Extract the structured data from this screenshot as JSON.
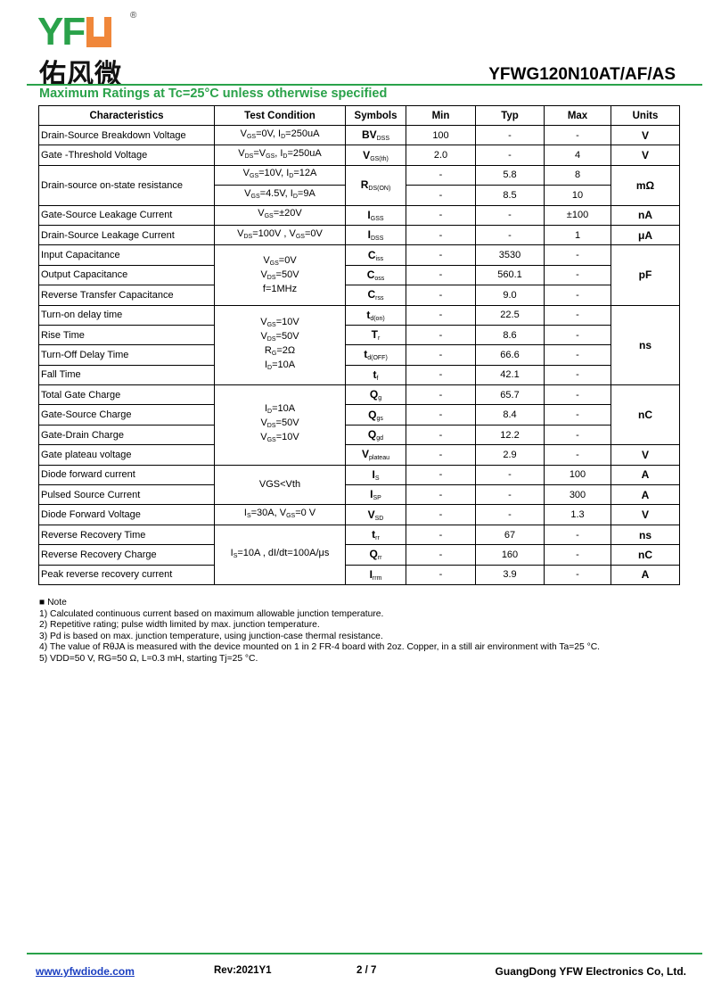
{
  "header": {
    "logo_text": "YFW",
    "logo_cn": "佑风微",
    "logo_reg": "®",
    "part_number": "YFWG120N10AT/AF/AS",
    "accent_color": "#2aa24a",
    "logo_orange": "#f0873a"
  },
  "section_title": "Maximum Ratings at Tc=25°C unless otherwise specified",
  "table": {
    "headers": [
      "Characteristics",
      "Test Condition",
      "Symbols",
      "Min",
      "Typ",
      "Max",
      "Units"
    ],
    "rows": [
      {
        "char": "Drain-Source Breakdown Voltage",
        "cond": [
          [
            "V",
            "GS",
            "=0V, I",
            "D",
            "=250uA"
          ]
        ],
        "sym": [
          "BV",
          "DSS"
        ],
        "min": "100",
        "typ": "-",
        "max": "-",
        "unit": "V"
      },
      {
        "char": "Gate -Threshold  Voltage",
        "cond": [
          [
            "V",
            "DS",
            "=V",
            "GS",
            ", I",
            "D",
            "=250uA"
          ]
        ],
        "sym": [
          "V",
          "GS(th)"
        ],
        "min": "2.0",
        "typ": "-",
        "max": "4",
        "unit": "V"
      },
      {
        "char": "Drain-source on-state resistance",
        "char_span": 2,
        "cond": [
          [
            "V",
            "GS",
            "=10V, I",
            "D",
            "=12A"
          ]
        ],
        "sym": [
          "R",
          "DS(ON)"
        ],
        "sym_span": 2,
        "min": "-",
        "typ": "5.8",
        "max": "8",
        "unit": "mΩ",
        "unit_span": 2
      },
      {
        "cond": [
          [
            "V",
            "GS",
            "=4.5V, I",
            "D",
            "=9A"
          ]
        ],
        "min": "-",
        "typ": "8.5",
        "max": "10"
      },
      {
        "char": "Gate-Source Leakage Current",
        "cond": [
          [
            "V",
            "GS",
            "=±20V"
          ]
        ],
        "sym": [
          "I",
          "GSS"
        ],
        "min": "-",
        "typ": "-",
        "max": "±100",
        "unit": "nA"
      },
      {
        "char": "Drain-Source Leakage Current",
        "cond": [
          [
            "V",
            "DS",
            "=100V , V",
            "GS",
            "=0V"
          ]
        ],
        "sym": [
          "I",
          "DSS"
        ],
        "min": "-",
        "typ": "-",
        "max": "1",
        "unit": "μA"
      },
      {
        "char": "Input Capacitance",
        "cond": [
          [
            "V",
            "GS",
            "=0V"
          ],
          [
            "V",
            "DS",
            "=50V"
          ],
          [
            "f=1MHz"
          ]
        ],
        "cond_span": 3,
        "sym": [
          "C",
          "iss"
        ],
        "min": "-",
        "typ": "3530",
        "max": "-",
        "unit": "pF",
        "unit_span": 3
      },
      {
        "char": "Output Capacitance",
        "sym": [
          "C",
          "oss"
        ],
        "min": "-",
        "typ": "560.1",
        "max": "-"
      },
      {
        "char": "Reverse Transfer Capacitance",
        "sym": [
          "C",
          "rss"
        ],
        "min": "-",
        "typ": "9.0",
        "max": "-"
      },
      {
        "char": "Turn-on delay time",
        "cond": [
          [
            "V",
            "GS",
            "=10V"
          ],
          [
            "V",
            "DS",
            "=50V"
          ],
          [
            "R",
            "G",
            "=2Ω"
          ],
          [
            "I",
            "D",
            "=10A"
          ]
        ],
        "cond_span": 4,
        "sym": [
          "t",
          "d(on)"
        ],
        "min": "-",
        "typ": "22.5",
        "max": "-",
        "unit": "ns",
        "unit_span": 4
      },
      {
        "char": "Rise Time",
        "sym": [
          "T",
          "r"
        ],
        "min": "-",
        "typ": "8.6",
        "max": "-"
      },
      {
        "char": "Turn-Off  Delay Time",
        "sym": [
          "t",
          "d(OFF)"
        ],
        "min": "-",
        "typ": "66.6",
        "max": "-"
      },
      {
        "char": "Fall Time",
        "sym": [
          "t",
          "f"
        ],
        "min": "-",
        "typ": "42.1",
        "max": "-"
      },
      {
        "char": "Total Gate Charge",
        "cond": [
          [
            "I",
            "D",
            "=10A"
          ],
          [
            "V",
            "DS",
            "=50V"
          ],
          [
            "V",
            "GS",
            "=10V"
          ]
        ],
        "cond_span": 4,
        "sym": [
          "Q",
          "g"
        ],
        "min": "-",
        "typ": "65.7",
        "max": "-",
        "unit": "nC",
        "unit_span": 3
      },
      {
        "char": "Gate-Source Charge",
        "sym": [
          "Q",
          "gs"
        ],
        "min": "-",
        "typ": "8.4",
        "max": "-"
      },
      {
        "char": "Gate-Drain Charge",
        "sym": [
          "Q",
          "gd"
        ],
        "min": "-",
        "typ": "12.2",
        "max": "-"
      },
      {
        "char": "Gate plateau voltage",
        "sym": [
          "V",
          "plateau"
        ],
        "min": "-",
        "typ": "2.9",
        "max": "-",
        "unit": "V"
      },
      {
        "char": "Diode forward current",
        "cond": [
          [
            "VGS<Vth"
          ]
        ],
        "cond_span": 2,
        "sym": [
          "I",
          "S"
        ],
        "min": "-",
        "typ": "-",
        "max": "100",
        "unit": "A"
      },
      {
        "char": "Pulsed Source Current",
        "sym": [
          "I",
          "SP"
        ],
        "min": "-",
        "typ": "-",
        "max": "300",
        "unit": "A"
      },
      {
        "char": "Diode Forward Voltage",
        "cond": [
          [
            "I",
            "S",
            "=30A, V",
            "GS",
            "=0 V"
          ]
        ],
        "sym": [
          "V",
          "SD"
        ],
        "min": "-",
        "typ": "-",
        "max": "1.3",
        "unit": "V"
      },
      {
        "char": "Reverse Recovery Time",
        "cond": [
          [
            "I",
            "S",
            "=10A , dI/dt=100A/μs"
          ]
        ],
        "cond_span": 3,
        "sym": [
          "t",
          "rr"
        ],
        "min": "-",
        "typ": "67",
        "max": "-",
        "unit": "ns"
      },
      {
        "char": "Reverse Recovery Charge",
        "sym": [
          "Q",
          "rr"
        ],
        "min": "-",
        "typ": "160",
        "max": "-",
        "unit": "nC"
      },
      {
        "char": "Peak reverse recovery current",
        "sym": [
          "I",
          "rrm"
        ],
        "min": "-",
        "typ": "3.9",
        "max": "-",
        "unit": "A"
      }
    ]
  },
  "notes": {
    "title": "■ Note",
    "items": [
      "1) Calculated continuous current based on maximum allowable junction temperature.",
      "2) Repetitive rating; pulse width limited by max. junction temperature.",
      "3) Pd is based on max. junction temperature, using junction-case thermal resistance.",
      "4) The value of RθJA is measured with the device mounted on 1 in 2 FR-4 board with 2oz. Copper, in a still air environment with Ta=25 °C.",
      "5) VDD=50 V, RG=50 Ω, L=0.3 mH, starting Tj=25 °C."
    ]
  },
  "footer": {
    "website": "www.yfwdiode.com",
    "revision": "Rev:2021Y1",
    "page": "2 / 7",
    "company": "GuangDong YFW Electronics Co, Ltd."
  }
}
